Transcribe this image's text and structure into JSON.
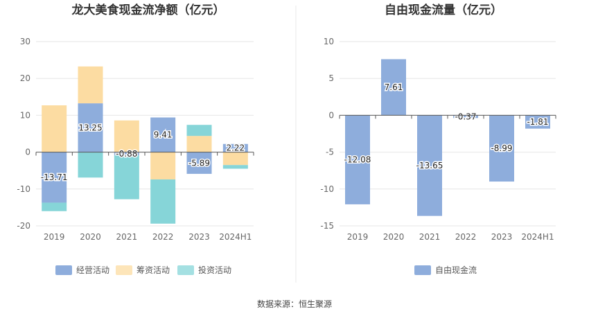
{
  "source_label": "数据来源：恒生聚源",
  "colors": {
    "operating": "#8eaddc",
    "financing": "#fcdca2",
    "investing": "#86d5d8",
    "free_cash_flow": "#8eaddc"
  },
  "chart_data": [
    {
      "type": "bar",
      "stacked": true,
      "title": "龙大美食现金流净额（亿元）",
      "categories": [
        "2019",
        "2020",
        "2021",
        "2022",
        "2023",
        "2024H1"
      ],
      "ylim": [
        -20,
        30
      ],
      "yticks": [
        30,
        20,
        10,
        0,
        -10,
        -20
      ],
      "legend_position": "bottom",
      "grid": true,
      "series": [
        {
          "name": "经营活动",
          "values": [
            -13.71,
            13.25,
            -0.88,
            9.41,
            -5.89,
            2.22
          ],
          "labels": [
            "-13.71",
            "13.25",
            "-0.88",
            "9.41",
            "-5.89",
            "2.22"
          ]
        },
        {
          "name": "筹资活动",
          "values": [
            12.7,
            10.0,
            8.6,
            -7.4,
            4.4,
            -3.5
          ]
        },
        {
          "name": "投资活动",
          "values": [
            -2.3,
            -6.9,
            -11.9,
            -12.0,
            3.0,
            -1.0
          ]
        }
      ]
    },
    {
      "type": "bar",
      "stacked": false,
      "title": "自由现金流量（亿元）",
      "categories": [
        "2019",
        "2020",
        "2021",
        "2022",
        "2023",
        "2024H1"
      ],
      "ylim": [
        -15,
        10
      ],
      "yticks": [
        10,
        5,
        0,
        -5,
        -10,
        -15
      ],
      "legend_position": "bottom",
      "grid": true,
      "series": [
        {
          "name": "自由现金流",
          "values": [
            -12.08,
            7.61,
            -13.65,
            -0.37,
            -8.99,
            -1.81
          ],
          "labels": [
            "-12.08",
            "7.61",
            "-13.65",
            "-0.37",
            "-8.99",
            "-1.81"
          ]
        }
      ]
    }
  ]
}
